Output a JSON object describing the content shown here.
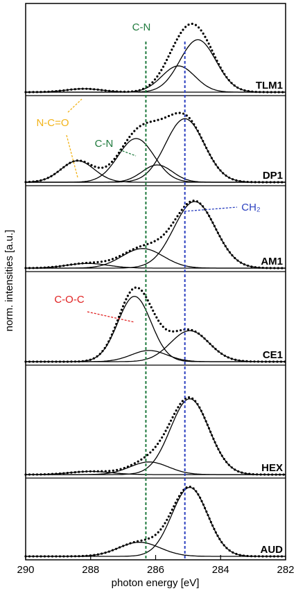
{
  "chart_data": {
    "type": "line",
    "xlabel": "photon energy [eV]",
    "ylabel": "norm. intensities [a.u.]",
    "xlim": [
      290,
      282
    ],
    "xticks": [
      290,
      288,
      286,
      284,
      282
    ],
    "ylim": [
      0,
      1
    ],
    "reference_lines": [
      {
        "value": 286.3,
        "color": "#1f7a3d"
      },
      {
        "value": 285.1,
        "color": "#2a3fbf"
      }
    ],
    "annotations": [
      {
        "text": "C-N",
        "color": "#1f7a3d"
      },
      {
        "text": "N-C=O",
        "color": "#f2b318"
      },
      {
        "text": "C-N",
        "color": "#1f7a3d"
      },
      {
        "text": "CH₂",
        "color": "#2a3fbf"
      },
      {
        "text": "C-O-C",
        "color": "#e02020"
      }
    ],
    "panels": [
      {
        "name": "TLM1",
        "peaks": [
          {
            "center": 284.7,
            "height": 0.62,
            "fwhm": 1.3
          },
          {
            "center": 285.3,
            "height": 0.31,
            "fwhm": 1.2
          },
          {
            "center": 288.2,
            "height": 0.04,
            "fwhm": 1.3
          }
        ]
      },
      {
        "name": "DP1",
        "peaks": [
          {
            "center": 288.4,
            "height": 0.26,
            "fwhm": 1.2
          },
          {
            "center": 286.6,
            "height": 0.53,
            "fwhm": 1.3
          },
          {
            "center": 285.95,
            "height": 0.21,
            "fwhm": 1.1
          },
          {
            "center": 285.1,
            "height": 0.77,
            "fwhm": 1.4
          }
        ]
      },
      {
        "name": "AM1",
        "peaks": [
          {
            "center": 288.1,
            "height": 0.06,
            "fwhm": 1.5
          },
          {
            "center": 286.4,
            "height": 0.25,
            "fwhm": 1.5
          },
          {
            "center": 284.8,
            "height": 0.85,
            "fwhm": 1.5
          }
        ]
      },
      {
        "name": "CE1",
        "peaks": [
          {
            "center": 286.65,
            "height": 0.76,
            "fwhm": 1.2
          },
          {
            "center": 286.2,
            "height": 0.13,
            "fwhm": 1.3
          },
          {
            "center": 284.95,
            "height": 0.36,
            "fwhm": 1.4
          }
        ]
      },
      {
        "name": "HEX",
        "peaks": [
          {
            "center": 288.0,
            "height": 0.03,
            "fwhm": 1.5
          },
          {
            "center": 286.2,
            "height": 0.12,
            "fwhm": 1.4
          },
          {
            "center": 284.95,
            "height": 0.72,
            "fwhm": 1.4
          }
        ]
      },
      {
        "name": "AUD",
        "peaks": [
          {
            "center": 286.5,
            "height": 0.19,
            "fwhm": 1.5
          },
          {
            "center": 284.95,
            "height": 0.93,
            "fwhm": 1.3
          }
        ]
      }
    ]
  }
}
